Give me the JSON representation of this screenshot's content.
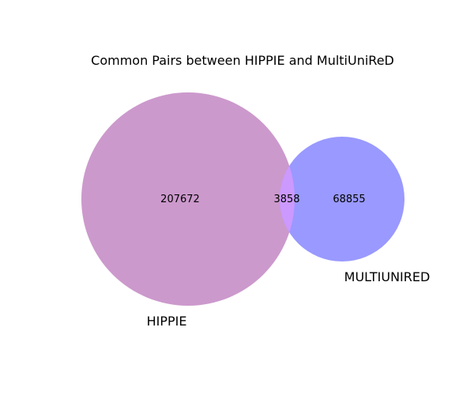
{
  "chart_data": {
    "type": "venn",
    "title": "Common Pairs between HIPPIE and MultiUniReD",
    "sets": [
      {
        "name": "HIPPIE",
        "color": "#cc99cc",
        "only_count": "207672"
      },
      {
        "name": "MULTIUNIRED",
        "color": "#9999ff",
        "only_count": "68855"
      }
    ],
    "intersection": {
      "count": "3858",
      "color": "#cc99ff"
    }
  }
}
